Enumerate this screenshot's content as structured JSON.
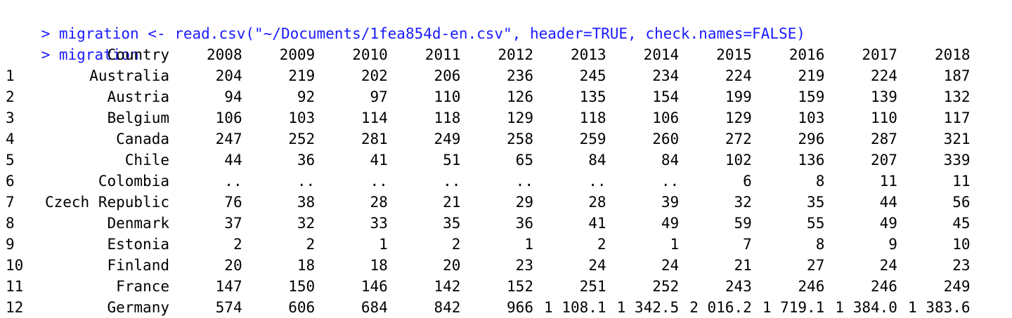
{
  "console": {
    "prompt": "> ",
    "commands": [
      "migration <- read.csv(\"~/Documents/1fea854d-en.csv\", header=TRUE, check.names=FALSE)",
      "migration"
    ],
    "colors": {
      "command": "#1a1aff",
      "output": "#000000",
      "background": "#ffffff"
    }
  },
  "table": {
    "headers": [
      "",
      "Country",
      "2008",
      "2009",
      "2010",
      "2011",
      "2012",
      "2013",
      "2014",
      "2015",
      "2016",
      "2017",
      "2018"
    ],
    "rows": [
      [
        "1",
        "Australia",
        "204",
        "219",
        "202",
        "206",
        "236",
        "245",
        "234",
        "224",
        "219",
        "224",
        "187"
      ],
      [
        "2",
        "Austria",
        "94",
        "92",
        "97",
        "110",
        "126",
        "135",
        "154",
        "199",
        "159",
        "139",
        "132"
      ],
      [
        "3",
        "Belgium",
        "106",
        "103",
        "114",
        "118",
        "129",
        "118",
        "106",
        "129",
        "103",
        "110",
        "117"
      ],
      [
        "4",
        "Canada",
        "247",
        "252",
        "281",
        "249",
        "258",
        "259",
        "260",
        "272",
        "296",
        "287",
        "321"
      ],
      [
        "5",
        "Chile",
        "44",
        "36",
        "41",
        "51",
        "65",
        "84",
        "84",
        "102",
        "136",
        "207",
        "339"
      ],
      [
        "6",
        "Colombia",
        "..",
        "..",
        "..",
        "..",
        "..",
        "..",
        "..",
        "6",
        "8",
        "11",
        "11"
      ],
      [
        "7",
        "Czech Republic",
        "76",
        "38",
        "28",
        "21",
        "29",
        "28",
        "39",
        "32",
        "35",
        "44",
        "56"
      ],
      [
        "8",
        "Denmark",
        "37",
        "32",
        "33",
        "35",
        "36",
        "41",
        "49",
        "59",
        "55",
        "49",
        "45"
      ],
      [
        "9",
        "Estonia",
        "2",
        "2",
        "1",
        "2",
        "1",
        "2",
        "1",
        "7",
        "8",
        "9",
        "10"
      ],
      [
        "10",
        "Finland",
        "20",
        "18",
        "18",
        "20",
        "23",
        "24",
        "24",
        "21",
        "27",
        "24",
        "23"
      ],
      [
        "11",
        "France",
        "147",
        "150",
        "146",
        "142",
        "152",
        "251",
        "252",
        "243",
        "246",
        "246",
        "249"
      ],
      [
        "12",
        "Germany",
        "574",
        "606",
        "684",
        "842",
        "966",
        "1 108.1",
        "1 342.5",
        "2 016.2",
        "1 719.1",
        "1 384.0",
        "1 383.6"
      ]
    ]
  }
}
